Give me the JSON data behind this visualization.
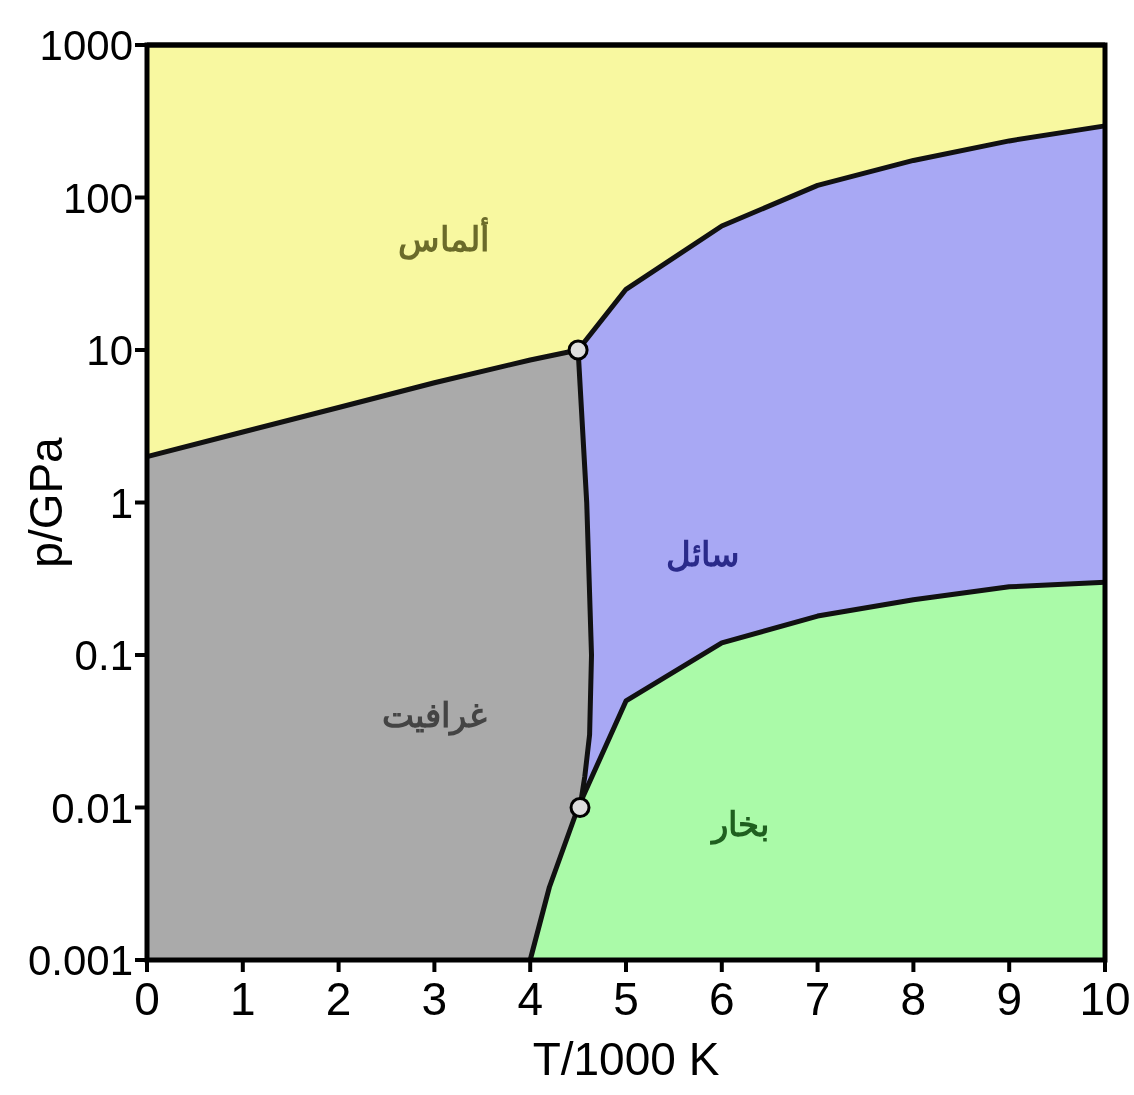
{
  "chart_data": {
    "type": "area",
    "xlabel": "T/1000 K",
    "ylabel": "p/GPa",
    "log": "y",
    "grid": false,
    "line_style": "solid",
    "xlim": [
      0,
      10
    ],
    "ylim": [
      0.001,
      1000
    ],
    "xticks": [
      0,
      1,
      2,
      3,
      4,
      5,
      6,
      7,
      8,
      9,
      10
    ],
    "yticks": [
      0.001,
      0.01,
      0.1,
      1,
      10,
      100,
      1000
    ],
    "series": [
      {
        "color": "#f8f8a0",
        "x": [
          0,
          10
        ],
        "values": [
          1000,
          1000
        ]
      },
      {
        "color": "#a8a8f4",
        "x": [
          4.5,
          5,
          6,
          7,
          8,
          9,
          10
        ],
        "values": [
          10,
          25,
          65,
          120,
          175,
          235,
          295
        ]
      },
      {
        "color": "#aaaaaa",
        "x": [
          0,
          1,
          2,
          3,
          4,
          4.5,
          4.59,
          4.64,
          4.62,
          4.57,
          4.52
        ],
        "values": [
          2,
          2.9,
          4.2,
          6.1,
          8.6,
          10,
          1,
          0.1,
          0.03,
          0.016,
          0.01
        ]
      },
      {
        "color": "#aafaa8",
        "x": [
          4,
          4.2,
          4.5,
          5,
          6,
          7,
          8,
          9,
          10
        ],
        "values": [
          0.001,
          0.003,
          0.01,
          0.05,
          0.12,
          0.18,
          0.23,
          0.28,
          0.3
        ]
      },
      {
        "type": "scatter",
        "color": "#dddddd",
        "marker": "circle",
        "x": [
          4.5,
          4.52
        ],
        "values": [
          10,
          0.01
        ]
      }
    ],
    "annotations": [
      "ألماس",
      "سائل",
      "غرافيت",
      "بخار"
    ]
  }
}
